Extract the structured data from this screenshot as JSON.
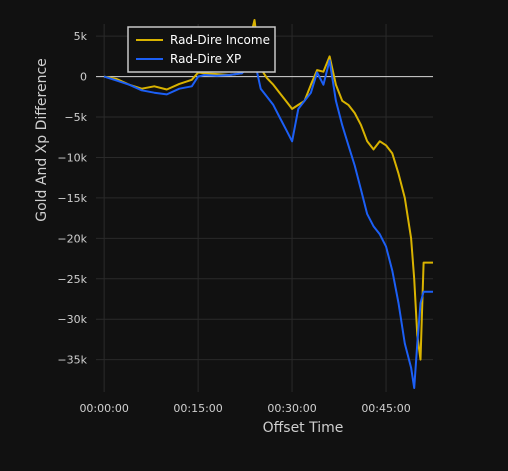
{
  "chart_data": {
    "type": "line",
    "title": "",
    "xlabel": "Offset Time",
    "ylabel": "Gold And Xp Difference",
    "x_unit": "minutes",
    "xlim": [
      -1.3,
      52.5
    ],
    "ylim": [
      -39000,
      6500
    ],
    "x_ticks": [
      {
        "value": 0,
        "label": "00:00:00"
      },
      {
        "value": 15,
        "label": "00:15:00"
      },
      {
        "value": 30,
        "label": "00:30:00"
      },
      {
        "value": 45,
        "label": "00:45:00"
      }
    ],
    "y_ticks": [
      {
        "value": 5000,
        "label": "5k"
      },
      {
        "value": 0,
        "label": "0"
      },
      {
        "value": -5000,
        "label": "−5k"
      },
      {
        "value": -10000,
        "label": "−10k"
      },
      {
        "value": -15000,
        "label": "−15k"
      },
      {
        "value": -20000,
        "label": "−20k"
      },
      {
        "value": -25000,
        "label": "−25k"
      },
      {
        "value": -30000,
        "label": "−30k"
      },
      {
        "value": -35000,
        "label": "−35k"
      }
    ],
    "grid": true,
    "zero_line": true,
    "legend_position": "top-left",
    "series": [
      {
        "name": "Rad-Dire Income",
        "color": "#d9b300",
        "x": [
          0,
          2,
          4,
          6,
          8,
          10,
          12,
          14,
          15,
          16,
          18,
          20,
          22,
          24,
          25,
          26,
          27,
          28,
          29,
          30,
          31,
          32,
          33,
          34,
          35,
          36,
          37,
          38,
          39,
          40,
          41,
          42,
          43,
          44,
          45,
          46,
          47,
          48,
          49,
          49.5,
          50,
          50.5,
          51,
          52.5
        ],
        "y": [
          0,
          -300,
          -1000,
          -1500,
          -1200,
          -1600,
          -900,
          -400,
          500,
          400,
          300,
          200,
          400,
          7000,
          1000,
          -200,
          -1000,
          -2000,
          -3000,
          -4000,
          -3500,
          -3000,
          -1000,
          800,
          600,
          2500,
          -1000,
          -3000,
          -3500,
          -4500,
          -6000,
          -8000,
          -9000,
          -8000,
          -8500,
          -9500,
          -12000,
          -15000,
          -20000,
          -25000,
          -32000,
          -35000,
          -23000,
          -23000
        ]
      },
      {
        "name": "Rad-Dire XP",
        "color": "#1c5ff5",
        "x": [
          0,
          2,
          4,
          6,
          8,
          10,
          12,
          14,
          15,
          16,
          18,
          20,
          22,
          24,
          25,
          26,
          27,
          28,
          29,
          30,
          31,
          32,
          33,
          34,
          35,
          36,
          37,
          38,
          39,
          40,
          41,
          42,
          43,
          44,
          45,
          46,
          47,
          48,
          49,
          49.5,
          50,
          50.5,
          51,
          52.5
        ],
        "y": [
          0,
          -500,
          -1000,
          -1700,
          -2000,
          -2200,
          -1500,
          -1200,
          0,
          200,
          100,
          200,
          400,
          2000,
          -1500,
          -2500,
          -3500,
          -5000,
          -6500,
          -8000,
          -4000,
          -3000,
          -2000,
          500,
          -1000,
          2000,
          -3000,
          -6000,
          -8500,
          -11000,
          -14000,
          -17000,
          -18500,
          -19500,
          -21000,
          -24000,
          -28000,
          -33000,
          -36000,
          -38500,
          -33000,
          -28000,
          -26600,
          -26600
        ]
      }
    ]
  }
}
